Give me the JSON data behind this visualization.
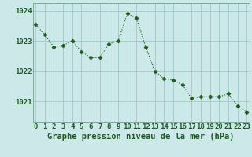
{
  "x": [
    0,
    1,
    2,
    3,
    4,
    5,
    6,
    7,
    8,
    9,
    10,
    11,
    12,
    13,
    14,
    15,
    16,
    17,
    18,
    19,
    20,
    21,
    22,
    23
  ],
  "y": [
    1023.55,
    1023.2,
    1022.8,
    1022.85,
    1023.0,
    1022.65,
    1022.45,
    1022.45,
    1022.9,
    1023.0,
    1023.9,
    1023.75,
    1022.8,
    1022.0,
    1021.75,
    1021.7,
    1021.55,
    1021.1,
    1021.15,
    1021.15,
    1021.15,
    1021.25,
    1020.85,
    1020.65
  ],
  "line_color": "#1a5c1a",
  "marker": "D",
  "marker_size": 2.5,
  "background_color": "#cce8e8",
  "grid_color": "#9ec8c8",
  "xlabel": "Graphe pression niveau de la mer (hPa)",
  "xlabel_fontsize": 7.5,
  "ylabel_ticks": [
    1021,
    1022,
    1023,
    1024
  ],
  "ylim": [
    1020.3,
    1024.25
  ],
  "xlim": [
    -0.3,
    23.3
  ],
  "tick_fontsize": 6.5,
  "tick_color": "#1a5c1a"
}
